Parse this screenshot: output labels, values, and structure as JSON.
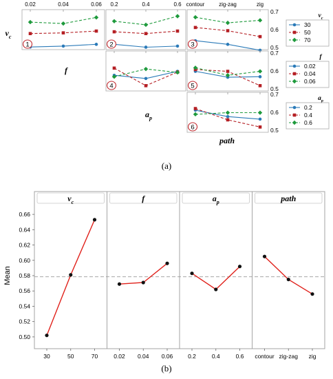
{
  "captions": {
    "a": "(a)",
    "b": "(b)"
  },
  "chart_data": [
    {
      "type": "line",
      "panel_label": "(a)",
      "factors": [
        {
          "key": "vc",
          "base": "v",
          "sub": "c",
          "levels": [
            "30",
            "50",
            "70"
          ]
        },
        {
          "key": "f",
          "base": "f",
          "sub": "",
          "levels": [
            "0.02",
            "0.04",
            "0.06"
          ]
        },
        {
          "key": "ap",
          "base": "a",
          "sub": "p",
          "levels": [
            "0.2",
            "0.4",
            "0.6"
          ]
        },
        {
          "key": "path",
          "base": "path",
          "sub": "",
          "levels": [
            "contour",
            "zig-zag",
            "zig"
          ]
        }
      ],
      "top_tick_labels": [
        [
          "0.02",
          "0.04",
          "0.06"
        ],
        [
          "0.2",
          "0.4",
          "0.6"
        ],
        [
          "contour",
          "zig-zag",
          "zig"
        ]
      ],
      "right_axis": {
        "ylim": [
          0.5,
          0.7
        ],
        "ticks": [
          "0.5",
          "0.6",
          "0.7"
        ]
      },
      "legend_placement": "right",
      "legends": [
        {
          "title_base": "v",
          "title_sub": "c",
          "entries": [
            "30",
            "50",
            "70"
          ]
        },
        {
          "title_base": "f",
          "title_sub": "",
          "entries": [
            "0.02",
            "0.04",
            "0.06"
          ]
        },
        {
          "title_base": "a",
          "title_sub": "p",
          "entries": [
            "0.2",
            "0.4",
            "0.6"
          ]
        }
      ],
      "series_style": [
        {
          "color": "#2a7ab8",
          "marker": "circle",
          "dash": false
        },
        {
          "color": "#b51f24",
          "marker": "square",
          "dash": true
        },
        {
          "color": "#1e9a3c",
          "marker": "diamond",
          "dash": true
        }
      ],
      "panels": [
        {
          "number": "1",
          "row": "vc",
          "col": "f",
          "series": [
            {
              "values": [
                0.503,
                0.508,
                0.518
              ]
            },
            {
              "values": [
                0.578,
                0.582,
                0.592
              ]
            },
            {
              "values": [
                0.642,
                0.634,
                0.668
              ]
            }
          ]
        },
        {
          "number": "2",
          "row": "vc",
          "col": "ap",
          "series": [
            {
              "values": [
                0.518,
                0.502,
                0.508
              ]
            },
            {
              "values": [
                0.588,
                0.578,
                0.592
              ]
            },
            {
              "values": [
                0.647,
                0.627,
                0.675
              ]
            }
          ]
        },
        {
          "number": "3",
          "row": "vc",
          "col": "path",
          "series": [
            {
              "values": [
                0.538,
                0.518,
                0.485
              ]
            },
            {
              "values": [
                0.612,
                0.594,
                0.561
              ]
            },
            {
              "values": [
                0.669,
                0.638,
                0.652
              ]
            }
          ]
        },
        {
          "number": "4",
          "row": "f",
          "col": "ap",
          "series": [
            {
              "values": [
                0.576,
                0.558,
                0.598
              ]
            },
            {
              "values": [
                0.616,
                0.518,
                0.594
              ]
            },
            {
              "values": [
                0.568,
                0.611,
                0.592
              ]
            }
          ]
        },
        {
          "number": "5",
          "row": "f",
          "col": "path",
          "series": [
            {
              "values": [
                0.598,
                0.565,
                0.568
              ]
            },
            {
              "values": [
                0.608,
                0.598,
                0.518
              ]
            },
            {
              "values": [
                0.618,
                0.576,
                0.598
              ]
            }
          ]
        },
        {
          "number": "6",
          "row": "ap",
          "col": "path",
          "series": [
            {
              "values": [
                0.612,
                0.576,
                0.562
              ]
            },
            {
              "values": [
                0.621,
                0.558,
                0.518
              ]
            },
            {
              "values": [
                0.589,
                0.598,
                0.598
              ]
            }
          ]
        }
      ]
    },
    {
      "type": "line",
      "panel_label": "(b)",
      "ylabel": "Mean",
      "ylim": [
        0.49,
        0.67
      ],
      "yticks": [
        0.5,
        0.52,
        0.54,
        0.56,
        0.58,
        0.6,
        0.62,
        0.64,
        0.66
      ],
      "ytick_labels": [
        "0.50",
        "0.52",
        "0.54",
        "0.56",
        "0.58",
        "0.60",
        "0.62",
        "0.64",
        "0.66"
      ],
      "grand_mean": 0.5785,
      "line_color": "#e0201a",
      "reference_color": "#a6a6a6",
      "facets": [
        {
          "title_base": "v",
          "title_sub": "c",
          "categories": [
            "30",
            "50",
            "70"
          ],
          "values": [
            0.502,
            0.581,
            0.653
          ]
        },
        {
          "title_base": "f",
          "title_sub": "",
          "categories": [
            "0.02",
            "0.04",
            "0.06"
          ],
          "values": [
            0.569,
            0.571,
            0.596
          ]
        },
        {
          "title_base": "a",
          "title_sub": "p",
          "categories": [
            "0.2",
            "0.4",
            "0.6"
          ],
          "values": [
            0.583,
            0.562,
            0.592
          ]
        },
        {
          "title_base": "path",
          "title_sub": "",
          "categories": [
            "contour",
            "zig-zag",
            "zig"
          ],
          "values": [
            0.605,
            0.575,
            0.556
          ]
        }
      ]
    }
  ]
}
